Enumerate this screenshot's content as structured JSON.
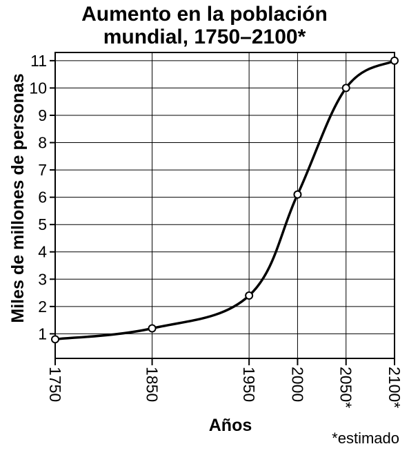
{
  "chart_data": {
    "type": "line",
    "title_lines": [
      "Aumento en la población",
      "mundial, 1750–2100*"
    ],
    "xlabel": "Años",
    "ylabel": "Miles de millones de personas",
    "x_ticks": [
      "1750",
      "1850",
      "1950",
      "2000",
      "2050*",
      "2100*"
    ],
    "y_ticks": [
      "1",
      "2",
      "3",
      "4",
      "5",
      "6",
      "7",
      "8",
      "9",
      "10",
      "11"
    ],
    "xlim": [
      1750,
      2100
    ],
    "ylim": [
      0.1,
      11.3
    ],
    "grid": true,
    "series": [
      {
        "points": [
          {
            "x": 1750,
            "y": 0.8
          },
          {
            "x": 1850,
            "y": 1.2
          },
          {
            "x": 1950,
            "y": 2.4
          },
          {
            "x": 2000,
            "y": 6.1
          },
          {
            "x": 2050,
            "y": 10.0
          },
          {
            "x": 2100,
            "y": 11.0
          }
        ]
      }
    ],
    "footnote": "*estimado",
    "line_color": "#000000"
  }
}
